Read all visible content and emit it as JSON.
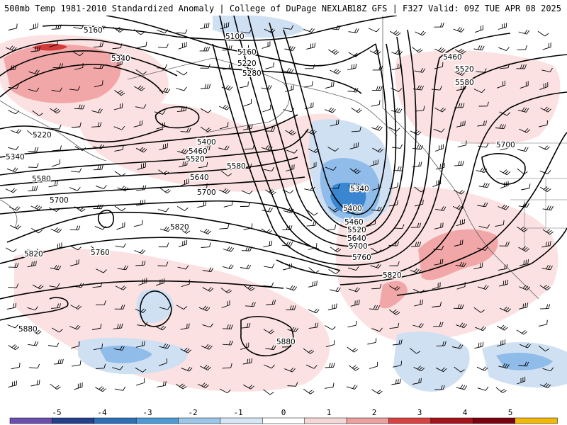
{
  "header": {
    "title_left": "500mb Temp 1981-2010 Standardized Anomaly | College of DuPage NEXLAB",
    "title_right": "18Z GFS | F327 Valid: 09Z TUE APR 08 2025"
  },
  "colorbar": {
    "ticks": [
      "-5",
      "-4",
      "-3",
      "-2",
      "-1",
      "0",
      "1",
      "2",
      "3",
      "4",
      "5"
    ],
    "colors": [
      "#6a4fae",
      "#243f8c",
      "#2f6fb8",
      "#4d9ad6",
      "#9cc5ea",
      "#d7e6f5",
      "#ffffff",
      "#f6d7d7",
      "#ee9f9f",
      "#d94040",
      "#a6121c",
      "#7a0010",
      "#f2b90a"
    ]
  },
  "map": {
    "anomaly_colors": {
      "cold_light": "#cfe0f3",
      "cold_medium": "#8fbce8",
      "cold_strong": "#3b86d0",
      "warm_light": "#fbe1e1",
      "warm_medium": "#f1a7a7",
      "warm_strong": "#d23a3a"
    },
    "contour_labels": [
      "5160",
      "5100",
      "5340",
      "5160",
      "5220",
      "5280",
      "5460",
      "5520",
      "5580",
      "5220",
      "5340",
      "5400",
      "5460",
      "5520",
      "5580",
      "5640",
      "5700",
      "5580",
      "5700",
      "5340",
      "5400",
      "5460",
      "5520",
      "5640",
      "5700",
      "5760",
      "5820",
      "5760",
      "5820",
      "5820",
      "5880",
      "5880",
      "5700"
    ]
  }
}
